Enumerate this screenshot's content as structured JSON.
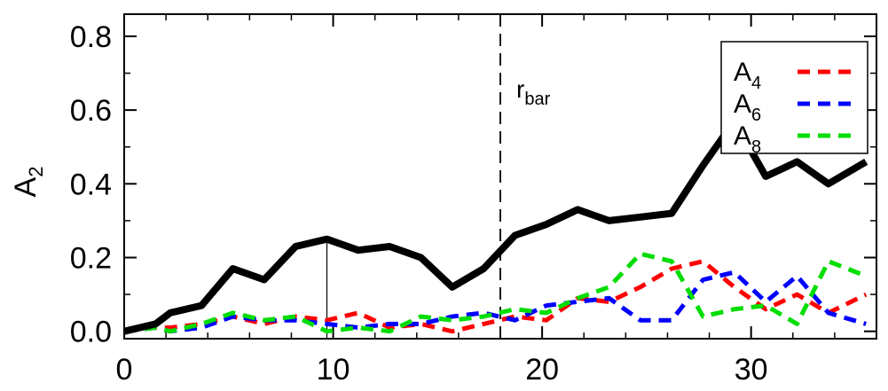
{
  "chart_data": {
    "type": "line",
    "title": "",
    "xlabel": "",
    "ylabel": {
      "base": "A",
      "sub": "2"
    },
    "xlim": [
      0,
      36
    ],
    "ylim": [
      -0.02,
      0.86
    ],
    "x_ticks": [
      0,
      10,
      20,
      30
    ],
    "y_ticks": [
      0.0,
      0.2,
      0.4,
      0.6,
      0.8
    ],
    "x_tick_labels": [
      "0",
      "10",
      "20",
      "30"
    ],
    "y_tick_labels": [
      "0.0",
      "0.2",
      "0.4",
      "0.6",
      "0.8"
    ],
    "grid": false,
    "legend_position": "top-right",
    "x": [
      0,
      1.5,
      2.2,
      3.7,
      5.2,
      6.7,
      8.2,
      9.7,
      11.2,
      12.7,
      14.2,
      15.7,
      17.2,
      18.7,
      20.2,
      21.7,
      23.2,
      24.7,
      26.2,
      27.7,
      29.2,
      30.7,
      32.2,
      33.7,
      35.5
    ],
    "series": [
      {
        "label": {
          "base": "A",
          "sub": "2"
        },
        "legend": false,
        "color": "#000000",
        "dash": "solid",
        "width": 8,
        "values": [
          0.0,
          0.02,
          0.05,
          0.07,
          0.17,
          0.14,
          0.23,
          0.25,
          0.22,
          0.23,
          0.2,
          0.12,
          0.17,
          0.26,
          0.29,
          0.33,
          0.3,
          0.31,
          0.32,
          0.45,
          0.57,
          0.42,
          0.46,
          0.4,
          0.46
        ]
      },
      {
        "label": {
          "base": "A",
          "sub": "4"
        },
        "legend": true,
        "color": "#ff0000",
        "dash": "dashed",
        "width": 5,
        "values": [
          0.0,
          0.01,
          0.01,
          0.02,
          0.04,
          0.02,
          0.04,
          0.03,
          0.05,
          0.01,
          0.02,
          0.0,
          0.02,
          0.04,
          0.03,
          0.09,
          0.08,
          0.12,
          0.17,
          0.19,
          0.12,
          0.06,
          0.1,
          0.05,
          0.1
        ]
      },
      {
        "label": {
          "base": "A",
          "sub": "6"
        },
        "legend": true,
        "color": "#0000ff",
        "dash": "dashed",
        "width": 5,
        "values": [
          0.0,
          0.01,
          0.0,
          0.01,
          0.04,
          0.03,
          0.03,
          0.02,
          0.01,
          0.02,
          0.02,
          0.04,
          0.05,
          0.03,
          0.07,
          0.08,
          0.09,
          0.03,
          0.03,
          0.14,
          0.16,
          0.08,
          0.15,
          0.05,
          0.02
        ]
      },
      {
        "label": {
          "base": "A",
          "sub": "8"
        },
        "legend": true,
        "color": "#00dd00",
        "dash": "dashed",
        "width": 5,
        "values": [
          0.0,
          0.01,
          0.0,
          0.02,
          0.05,
          0.03,
          0.04,
          0.0,
          0.01,
          0.0,
          0.04,
          0.03,
          0.04,
          0.06,
          0.05,
          0.09,
          0.12,
          0.21,
          0.19,
          0.04,
          0.06,
          0.07,
          0.02,
          0.19,
          0.15
        ]
      }
    ],
    "annotations": [
      {
        "text": {
          "base": "r",
          "sub": "bar"
        },
        "x": 18.0,
        "style": "dashed-vertical"
      },
      {
        "x": 9.7,
        "style": "thin-vertical"
      }
    ]
  }
}
